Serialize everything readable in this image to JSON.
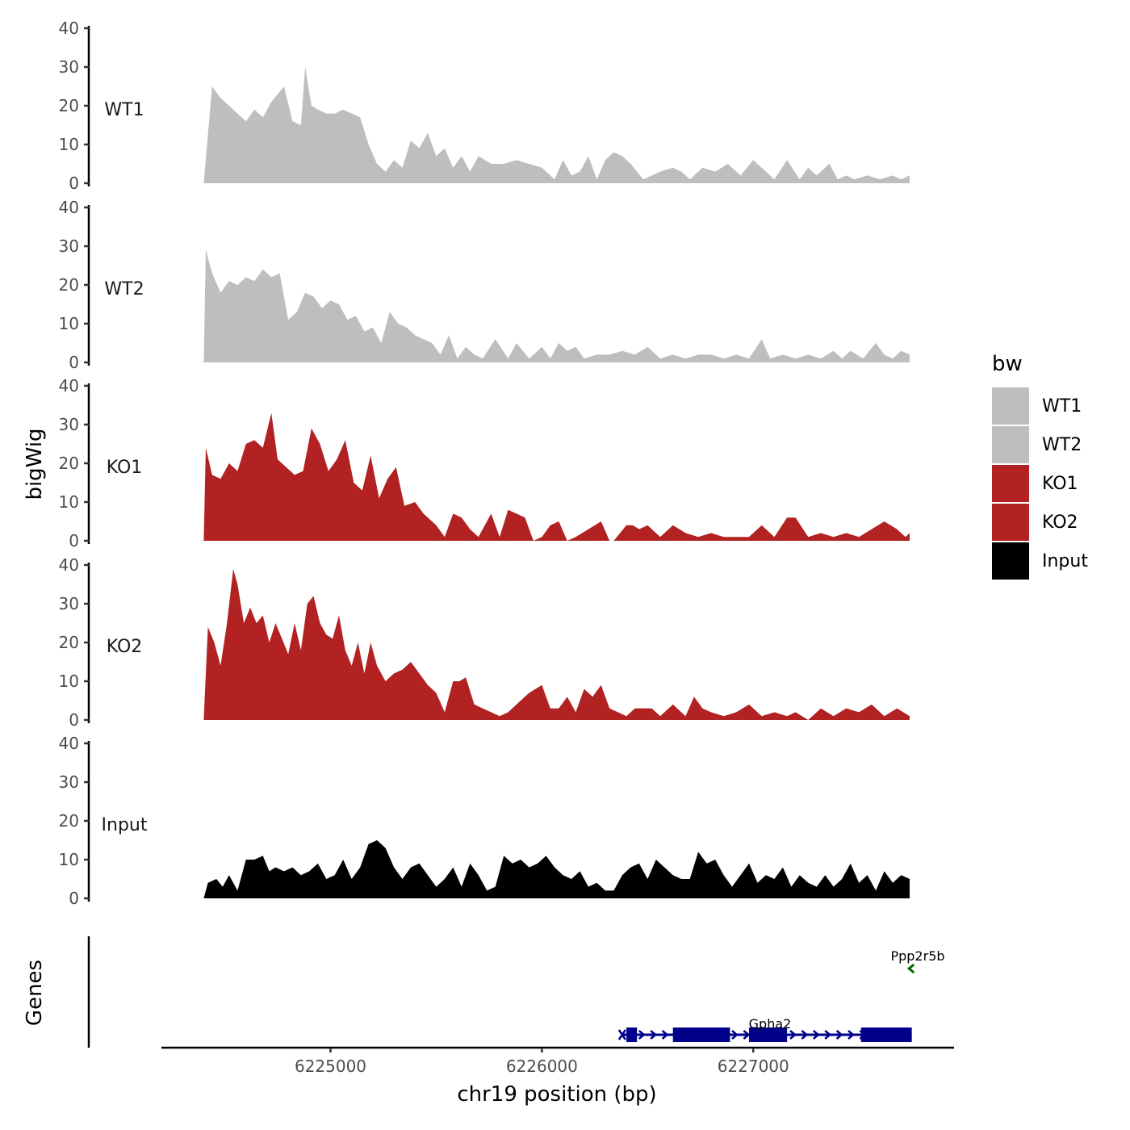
{
  "chart_data": {
    "type": "area",
    "xlabel": "chr19 position (bp)",
    "ylabel": "bigWig",
    "gene_panel_label": "Genes",
    "xlim": [
      6224200,
      6227950
    ],
    "x_ticks": [
      6225000,
      6226000,
      6227000
    ],
    "x_tick_labels": [
      "6225000",
      "6226000",
      "6227000"
    ],
    "ylim": [
      0,
      40
    ],
    "y_ticks": [
      0,
      10,
      20,
      30,
      40
    ],
    "y_tick_labels": [
      "0",
      "10",
      "20",
      "30",
      "40"
    ],
    "grid": false,
    "legend": {
      "title": "bw",
      "placement": "right",
      "items": [
        {
          "label": "WT1",
          "color": "#bebebe"
        },
        {
          "label": "WT2",
          "color": "#bebebe"
        },
        {
          "label": "KO1",
          "color": "#b22222"
        },
        {
          "label": "KO2",
          "color": "#b22222"
        },
        {
          "label": "Input",
          "color": "#000000"
        }
      ]
    },
    "series": [
      {
        "name": "WT1",
        "color": "#bebebe",
        "x": [
          6224400,
          6224440,
          6224480,
          6224540,
          6224600,
          6224640,
          6224680,
          6224720,
          6224780,
          6224820,
          6224860,
          6224880,
          6224910,
          6224940,
          6224980,
          6225020,
          6225060,
          6225100,
          6225140,
          6225180,
          6225220,
          6225260,
          6225300,
          6225340,
          6225380,
          6225420,
          6225460,
          6225500,
          6225540,
          6225580,
          6225620,
          6225660,
          6225700,
          6225760,
          6225820,
          6225880,
          6225940,
          6226000,
          6226060,
          6226100,
          6226140,
          6226180,
          6226220,
          6226260,
          6226300,
          6226340,
          6226380,
          6226420,
          6226480,
          6226560,
          6226620,
          6226660,
          6226700,
          6226760,
          6226820,
          6226880,
          6226940,
          6227000,
          6227060,
          6227100,
          6227160,
          6227220,
          6227260,
          6227300,
          6227360,
          6227400,
          6227440,
          6227480,
          6227540,
          6227600,
          6227660,
          6227700,
          6227740
        ],
        "values": [
          0,
          25,
          22,
          19,
          16,
          19,
          17,
          21,
          25,
          16,
          15,
          30,
          20,
          19,
          18,
          18,
          19,
          18,
          17,
          10,
          5,
          3,
          6,
          4,
          11,
          9,
          13,
          7,
          9,
          4,
          7,
          3,
          7,
          5,
          5,
          6,
          5,
          4,
          1,
          6,
          2,
          3,
          7,
          1,
          6,
          8,
          7,
          5,
          1,
          3,
          4,
          3,
          1,
          4,
          3,
          5,
          2,
          6,
          3,
          1,
          6,
          1,
          4,
          2,
          5,
          1,
          2,
          1,
          2,
          1,
          2,
          1,
          2
        ]
      },
      {
        "name": "WT2",
        "color": "#bebebe",
        "x": [
          6224400,
          6224410,
          6224440,
          6224480,
          6224520,
          6224560,
          6224600,
          6224640,
          6224680,
          6224720,
          6224760,
          6224800,
          6224840,
          6224880,
          6224920,
          6224960,
          6225000,
          6225040,
          6225080,
          6225120,
          6225160,
          6225200,
          6225240,
          6225280,
          6225320,
          6225360,
          6225400,
          6225440,
          6225480,
          6225520,
          6225560,
          6225600,
          6225640,
          6225680,
          6225720,
          6225780,
          6225840,
          6225880,
          6225940,
          6226000,
          6226040,
          6226080,
          6226120,
          6226160,
          6226200,
          6226260,
          6226320,
          6226380,
          6226440,
          6226500,
          6226560,
          6226620,
          6226680,
          6226740,
          6226800,
          6226860,
          6226920,
          6226980,
          6227040,
          6227080,
          6227140,
          6227200,
          6227260,
          6227320,
          6227380,
          6227420,
          6227460,
          6227520,
          6227580,
          6227620,
          6227660,
          6227700,
          6227740
        ],
        "values": [
          0,
          29,
          23,
          18,
          21,
          20,
          22,
          21,
          24,
          22,
          23,
          11,
          13,
          18,
          17,
          14,
          16,
          15,
          11,
          12,
          8,
          9,
          5,
          13,
          10,
          9,
          7,
          6,
          5,
          2,
          7,
          1,
          4,
          2,
          1,
          6,
          1,
          5,
          1,
          4,
          1,
          5,
          3,
          4,
          1,
          2,
          2,
          3,
          2,
          4,
          1,
          2,
          1,
          2,
          2,
          1,
          2,
          1,
          6,
          1,
          2,
          1,
          2,
          1,
          3,
          1,
          3,
          1,
          5,
          2,
          1,
          3,
          2
        ]
      },
      {
        "name": "KO1",
        "color": "#b22222",
        "x": [
          6224400,
          6224410,
          6224440,
          6224480,
          6224520,
          6224560,
          6224600,
          6224640,
          6224680,
          6224720,
          6224750,
          6224790,
          6224830,
          6224870,
          6224910,
          6224950,
          6224990,
          6225030,
          6225070,
          6225110,
          6225150,
          6225190,
          6225230,
          6225270,
          6225310,
          6225350,
          6225400,
          6225440,
          6225500,
          6225540,
          6225580,
          6225620,
          6225660,
          6225700,
          6225760,
          6225800,
          6225840,
          6225880,
          6225920,
          6225960,
          6226000,
          6226040,
          6226080,
          6226120,
          6226160,
          6226220,
          6226280,
          6226320,
          6226340,
          6226400,
          6226430,
          6226460,
          6226500,
          6226560,
          6226620,
          6226680,
          6226740,
          6226800,
          6226860,
          6226920,
          6226980,
          6227040,
          6227100,
          6227160,
          6227200,
          6227260,
          6227320,
          6227380,
          6227440,
          6227500,
          6227560,
          6227620,
          6227680,
          6227720,
          6227740
        ],
        "values": [
          0,
          24,
          17,
          16,
          20,
          18,
          25,
          26,
          24,
          33,
          21,
          19,
          17,
          18,
          29,
          25,
          18,
          21,
          26,
          15,
          13,
          22,
          11,
          16,
          19,
          9,
          10,
          7,
          4,
          1,
          7,
          6,
          3,
          1,
          7,
          1,
          8,
          7,
          6,
          0,
          1,
          4,
          5,
          0,
          1,
          3,
          5,
          0,
          0,
          4,
          4,
          3,
          4,
          1,
          4,
          2,
          1,
          2,
          1,
          1,
          1,
          4,
          1,
          6,
          6,
          1,
          2,
          1,
          2,
          1,
          3,
          5,
          3,
          1,
          2
        ]
      },
      {
        "name": "KO2",
        "color": "#b22222",
        "x": [
          6224400,
          6224420,
          6224450,
          6224480,
          6224510,
          6224540,
          6224560,
          6224590,
          6224620,
          6224650,
          6224680,
          6224710,
          6224740,
          6224770,
          6224800,
          6224830,
          6224860,
          6224890,
          6224920,
          6224950,
          6224980,
          6225010,
          6225040,
          6225070,
          6225100,
          6225130,
          6225160,
          6225190,
          6225220,
          6225260,
          6225300,
          6225340,
          6225380,
          6225420,
          6225460,
          6225500,
          6225540,
          6225580,
          6225610,
          6225640,
          6225680,
          6225720,
          6225760,
          6225800,
          6225840,
          6225880,
          6225940,
          6226000,
          6226040,
          6226080,
          6226120,
          6226160,
          6226200,
          6226240,
          6226280,
          6226320,
          6226360,
          6226400,
          6226440,
          6226480,
          6226520,
          6226560,
          6226620,
          6226680,
          6226720,
          6226760,
          6226800,
          6226860,
          6226920,
          6226980,
          6227040,
          6227100,
          6227160,
          6227200,
          6227260,
          6227320,
          6227380,
          6227440,
          6227500,
          6227560,
          6227620,
          6227680,
          6227740
        ],
        "values": [
          0,
          24,
          20,
          14,
          25,
          39,
          35,
          25,
          29,
          25,
          27,
          20,
          25,
          21,
          17,
          25,
          18,
          30,
          32,
          25,
          22,
          21,
          27,
          18,
          14,
          20,
          12,
          20,
          14,
          10,
          12,
          13,
          15,
          12,
          9,
          7,
          2,
          10,
          10,
          11,
          4,
          3,
          2,
          1,
          2,
          4,
          7,
          9,
          3,
          3,
          6,
          2,
          8,
          6,
          9,
          3,
          2,
          1,
          3,
          3,
          3,
          1,
          4,
          1,
          6,
          3,
          2,
          1,
          2,
          4,
          1,
          2,
          1,
          2,
          0,
          3,
          1,
          3,
          2,
          4,
          1,
          3,
          1
        ]
      },
      {
        "name": "Input",
        "color": "#000000",
        "x": [
          6224400,
          6224420,
          6224460,
          6224490,
          6224520,
          6224560,
          6224600,
          6224640,
          6224680,
          6224710,
          6224740,
          6224780,
          6224820,
          6224860,
          6224900,
          6224940,
          6224980,
          6225020,
          6225060,
          6225100,
          6225140,
          6225180,
          6225220,
          6225260,
          6225300,
          6225340,
          6225380,
          6225420,
          6225460,
          6225500,
          6225540,
          6225580,
          6225620,
          6225660,
          6225700,
          6225740,
          6225780,
          6225820,
          6225860,
          6225900,
          6225940,
          6225980,
          6226020,
          6226060,
          6226100,
          6226140,
          6226180,
          6226220,
          6226260,
          6226300,
          6226340,
          6226380,
          6226420,
          6226460,
          6226500,
          6226540,
          6226580,
          6226620,
          6226660,
          6226700,
          6226740,
          6226780,
          6226820,
          6226860,
          6226900,
          6226940,
          6226980,
          6227020,
          6227060,
          6227100,
          6227140,
          6227180,
          6227220,
          6227260,
          6227300,
          6227340,
          6227380,
          6227420,
          6227460,
          6227500,
          6227540,
          6227580,
          6227620,
          6227660,
          6227700,
          6227740
        ],
        "values": [
          0,
          4,
          5,
          3,
          6,
          2,
          10,
          10,
          11,
          7,
          8,
          7,
          8,
          6,
          7,
          9,
          5,
          6,
          10,
          5,
          8,
          14,
          15,
          13,
          8,
          5,
          8,
          9,
          6,
          3,
          5,
          8,
          3,
          9,
          6,
          2,
          3,
          11,
          9,
          10,
          8,
          9,
          11,
          8,
          6,
          5,
          7,
          3,
          4,
          2,
          2,
          6,
          8,
          9,
          5,
          10,
          8,
          6,
          5,
          5,
          12,
          9,
          10,
          6,
          3,
          6,
          9,
          4,
          6,
          5,
          8,
          3,
          6,
          4,
          3,
          6,
          3,
          5,
          9,
          4,
          6,
          2,
          7,
          4,
          6,
          5
        ]
      }
    ],
    "genes": [
      {
        "name": "Gpha2",
        "color": "#00008b",
        "strand": "+",
        "start": 6226380,
        "end": 6227750,
        "exons": [
          [
            6226400,
            6226450
          ],
          [
            6226620,
            6226890
          ],
          [
            6226980,
            6227160
          ],
          [
            6227510,
            6227750
          ]
        ]
      },
      {
        "name": "Ppp2r5b",
        "color": "#006400",
        "strand": "-",
        "start": 6227760,
        "end": 6227790,
        "exons": []
      }
    ]
  }
}
